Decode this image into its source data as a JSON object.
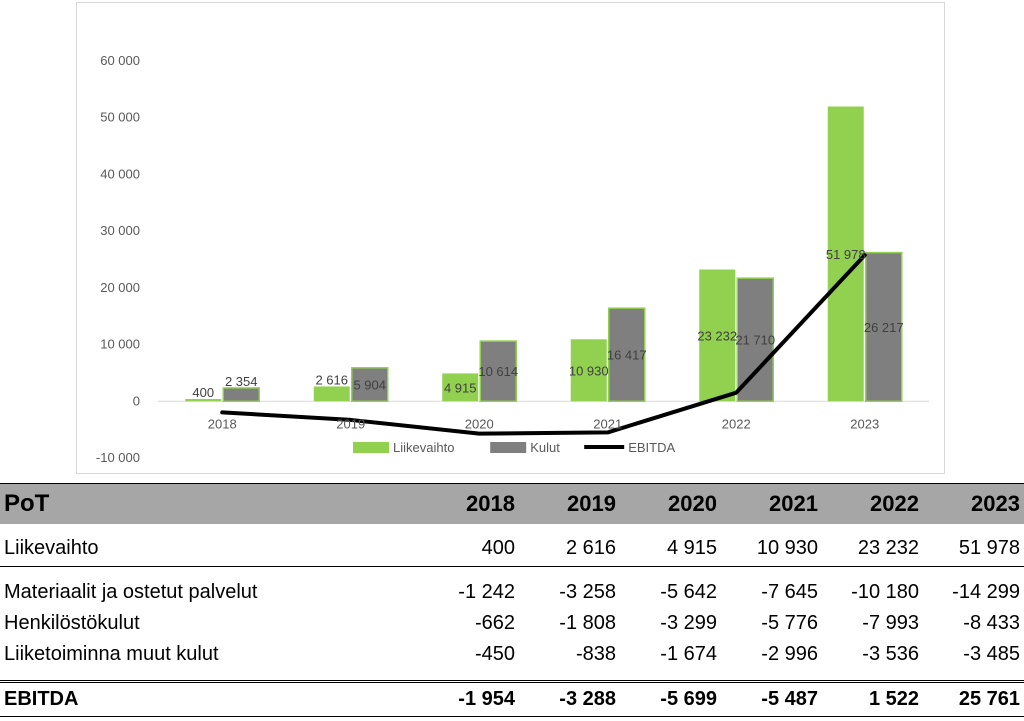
{
  "chart_data": {
    "type": "bar",
    "categories": [
      "2018",
      "2019",
      "2020",
      "2021",
      "2022",
      "2023"
    ],
    "series": [
      {
        "name": "Liikevaihto",
        "kind": "bar",
        "color": "#92d050",
        "values": [
          400,
          2616,
          4915,
          10930,
          23232,
          51978
        ],
        "labels": [
          "400",
          "2 616",
          "4 915",
          "10 930",
          "23 232",
          "51 978"
        ]
      },
      {
        "name": "Kulut",
        "kind": "bar",
        "color": "#7f7f7f",
        "values": [
          2354,
          5904,
          10614,
          16417,
          21710,
          26217
        ],
        "labels": [
          "2 354",
          "5 904",
          "10 614",
          "16 417",
          "21 710",
          "26 217"
        ]
      },
      {
        "name": "EBITDA",
        "kind": "line",
        "color": "#000000",
        "values": [
          -1954,
          -3288,
          -5699,
          -5487,
          1522,
          25761
        ]
      }
    ],
    "yticks": [
      -10000,
      0,
      10000,
      20000,
      30000,
      40000,
      50000,
      60000
    ],
    "ytick_labels": [
      "-10 000",
      "0",
      "10 000",
      "20 000",
      "30 000",
      "40 000",
      "50 000",
      "60 000"
    ],
    "ylim": [
      -10000,
      60000
    ],
    "grid": false,
    "legend": "bottom"
  },
  "table": {
    "title": "PoT",
    "years": [
      "2018",
      "2019",
      "2020",
      "2021",
      "2022",
      "2023"
    ],
    "revenue": {
      "label": "Liikevaihto",
      "values": [
        "400",
        "2 616",
        "4 915",
        "10 930",
        "23 232",
        "51 978"
      ]
    },
    "costs": [
      {
        "label": "Materiaalit ja ostetut palvelut",
        "values": [
          "-1 242",
          "-3 258",
          "-5 642",
          "-7 645",
          "-10 180",
          "-14 299"
        ]
      },
      {
        "label": "Henkilöstökulut",
        "values": [
          "-662",
          "-1 808",
          "-3 299",
          "-5 776",
          "-7 993",
          "-8 433"
        ]
      },
      {
        "label": "Liiketoiminna muut kulut",
        "values": [
          "-450",
          "-838",
          "-1 674",
          "-2 996",
          "-3 536",
          "-3 485"
        ]
      }
    ],
    "ebitda": {
      "label": "EBITDA",
      "values": [
        "-1 954",
        "-3 288",
        "-5 699",
        "-5 487",
        "1 522",
        "25 761"
      ]
    }
  }
}
